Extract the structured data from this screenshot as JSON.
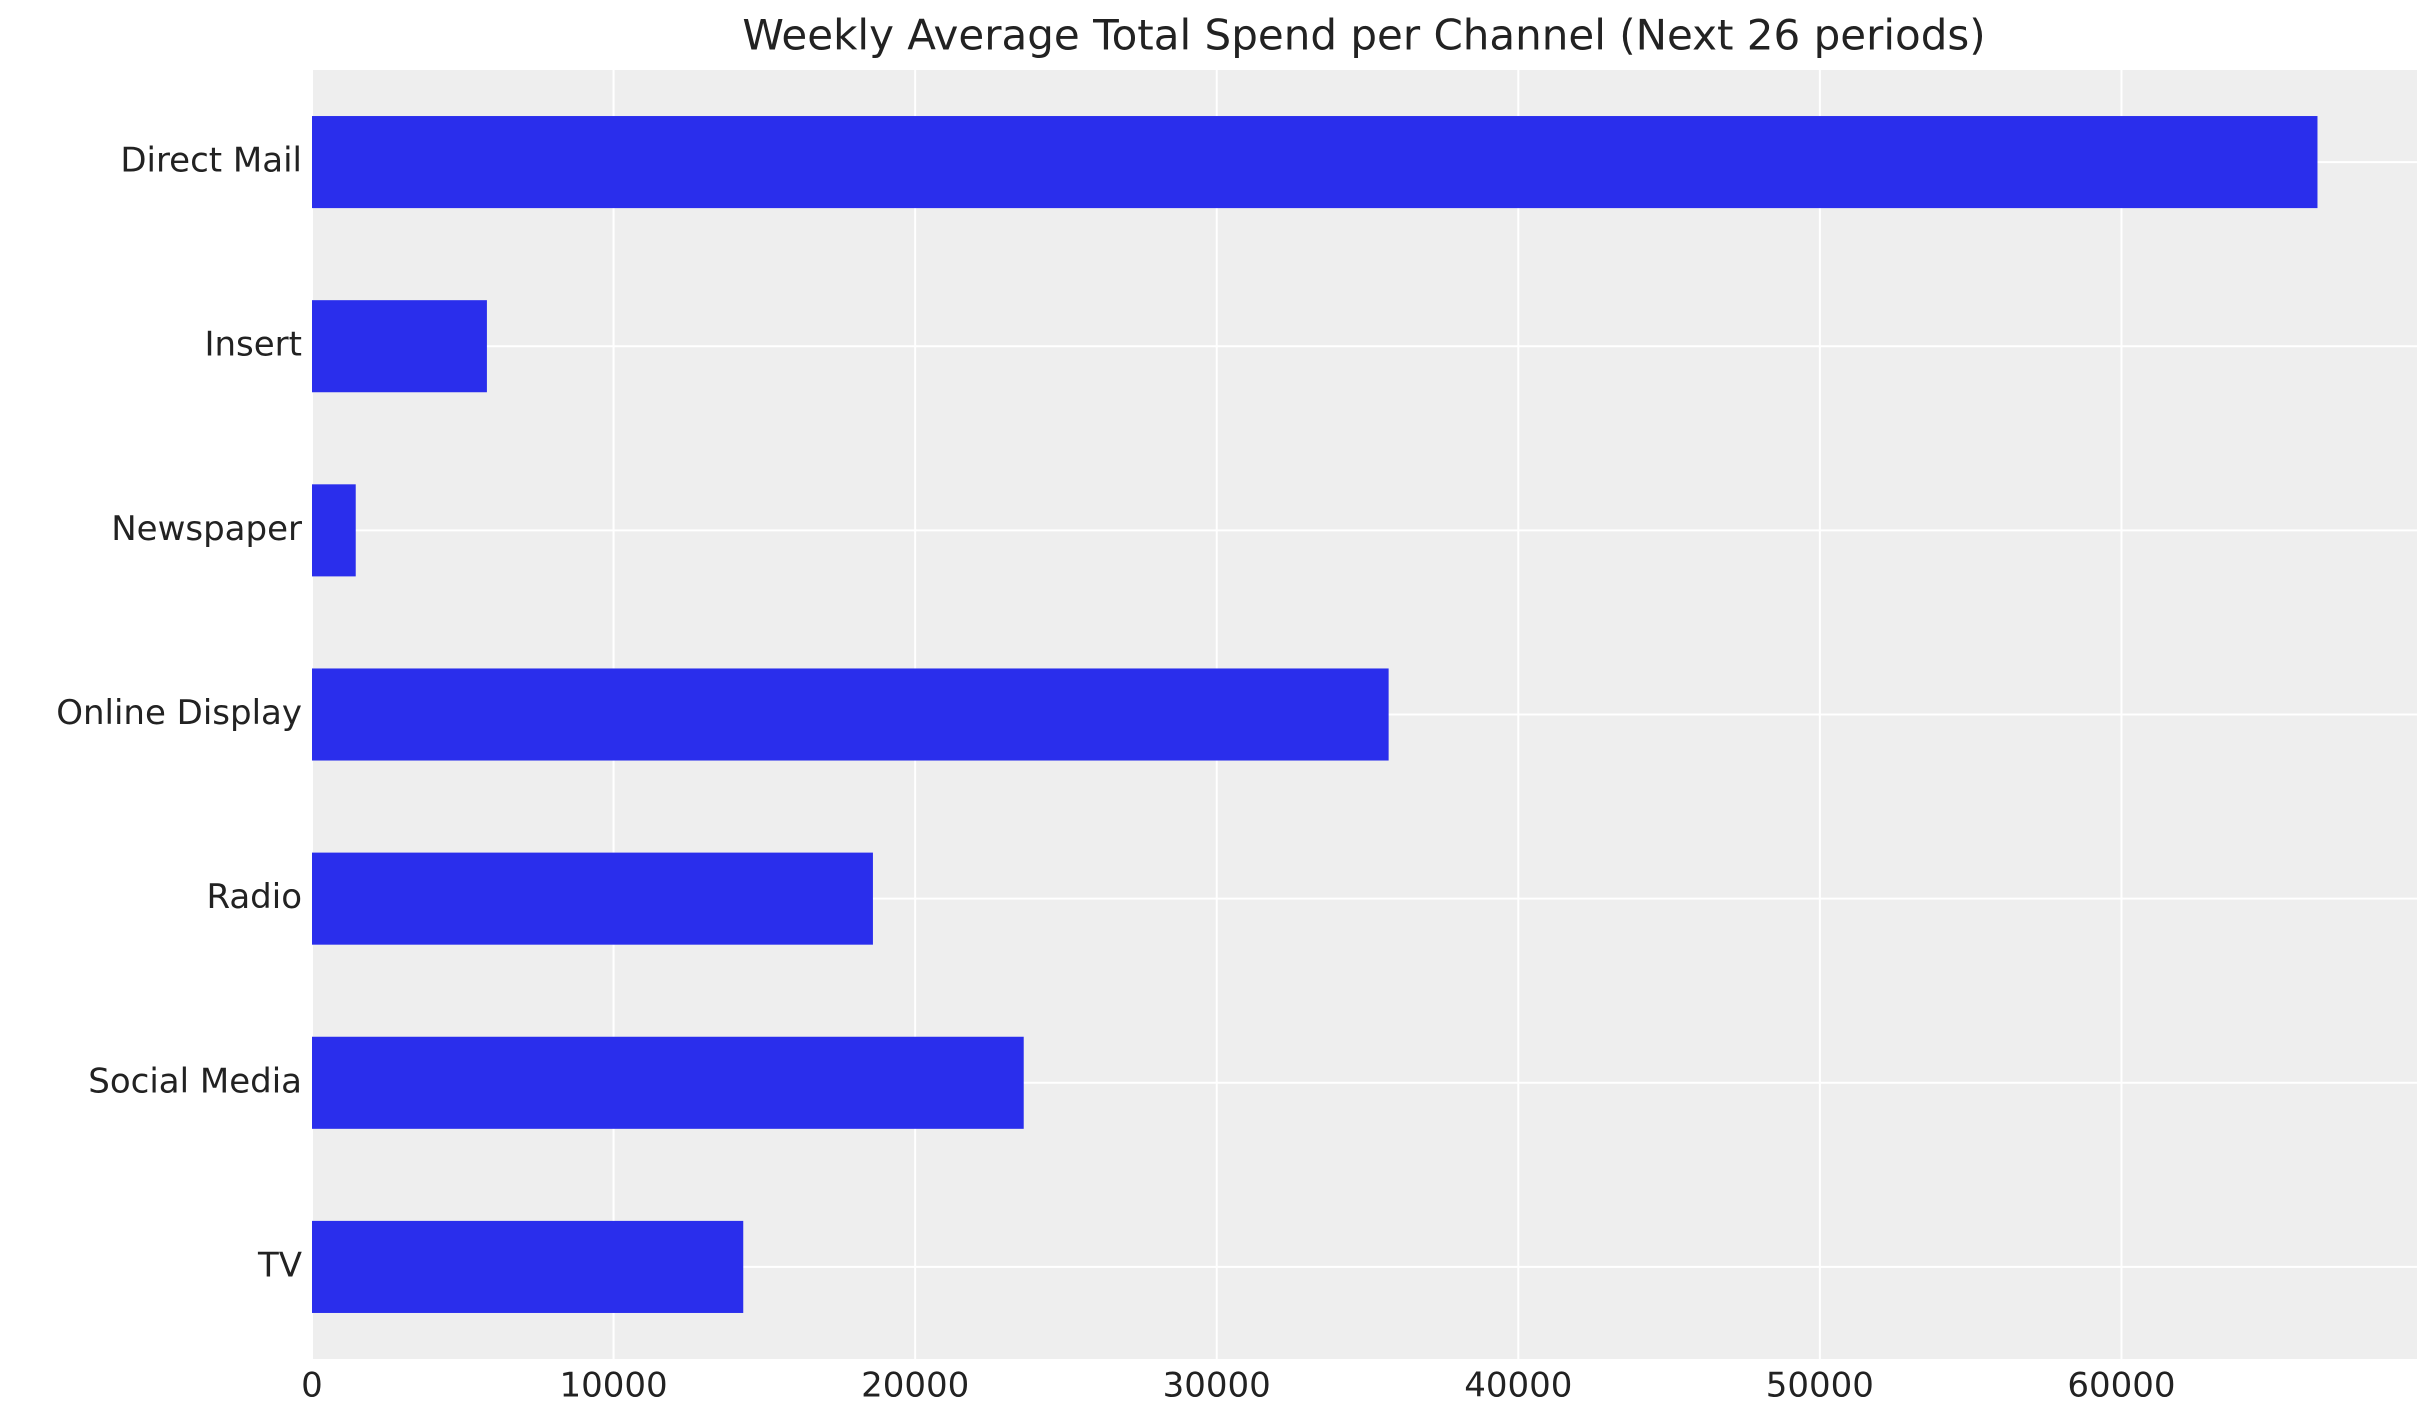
{
  "chart_data": {
    "type": "barh",
    "title": "Weekly Average Total Spend per Channel (Next 26 periods)",
    "categories": [
      "Direct Mail",
      "Insert",
      "Newspaper",
      "Online Display",
      "Radio",
      "Social Media",
      "TV"
    ],
    "values": [
      66500,
      5800,
      1450,
      35700,
      18600,
      23600,
      14300
    ],
    "color": "#2a2eec",
    "xlim": [
      0,
      69800
    ],
    "xticks": [
      0,
      10000,
      20000,
      30000,
      40000,
      50000,
      60000
    ],
    "grid": true
  }
}
